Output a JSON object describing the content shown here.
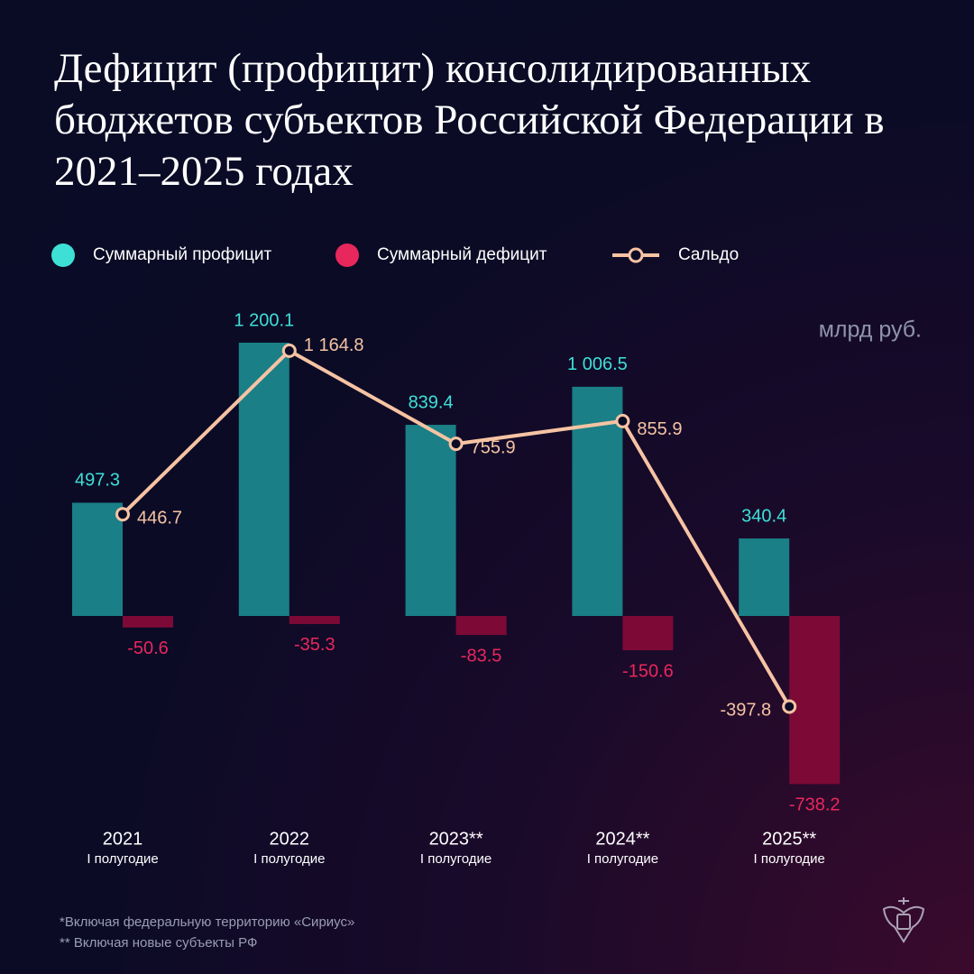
{
  "chart_data": {
    "type": "bar",
    "title": "Дефицит (профицит) консолидированных бюджетов субъектов Российской Федерации в 2021–2025 годах",
    "unit": "млрд руб.",
    "categories": [
      "2021",
      "2022",
      "2023**",
      "2024**",
      "2025**"
    ],
    "category_sublabels": [
      "I полугодие",
      "I полугодие",
      "I полугодие",
      "I полугодие",
      "I полугодие"
    ],
    "series": [
      {
        "name": "Суммарный профицит",
        "type": "bar",
        "color": "#1a7f86",
        "label_color": "#3ee0d6",
        "values": [
          497.3,
          1200.1,
          839.4,
          1006.5,
          340.4
        ],
        "value_labels": [
          "497.3",
          "1 200.1",
          "839.4",
          "1 006.5",
          "340.4"
        ]
      },
      {
        "name": "Суммарный дефицит",
        "type": "bar",
        "color": "#7d0a36",
        "label_color": "#e8275c",
        "values": [
          -50.6,
          -35.3,
          -83.5,
          -150.6,
          -738.2
        ]
      },
      {
        "name": "Сальдо",
        "type": "line",
        "color": "#f6c3a3",
        "label_color": "#f6c3a3",
        "values": [
          446.7,
          1164.8,
          755.9,
          855.9,
          -397.8
        ],
        "value_labels": [
          "446.7",
          "1 164.8",
          "755.9",
          "855.9",
          "-397.8"
        ]
      }
    ],
    "footnotes": [
      "*Включая федеральную территорию «Сириус»",
      "** Включая новые субъекты РФ"
    ]
  }
}
